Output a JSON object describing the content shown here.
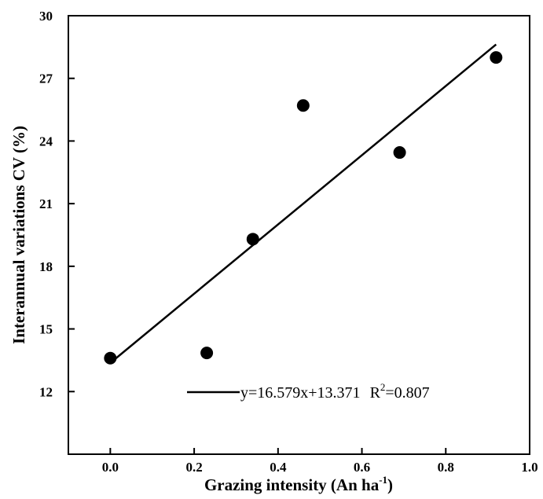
{
  "chart_data": {
    "type": "scatter",
    "xlim": [
      -0.1,
      1.0
    ],
    "ylim": [
      9,
      30
    ],
    "x_ticks": [
      "0.0",
      "0.2",
      "0.4",
      "0.6",
      "0.8",
      "1.0"
    ],
    "x_tick_values": [
      0.0,
      0.2,
      0.4,
      0.6,
      0.8,
      1.0
    ],
    "y_ticks": [
      "12",
      "15",
      "18",
      "21",
      "24",
      "27",
      "30"
    ],
    "y_tick_values": [
      12,
      15,
      18,
      21,
      24,
      27,
      30
    ],
    "xlabel": "Grazing intensity (An ha",
    "xlabel_sup": "-1",
    "xlabel_end": ")",
    "ylabel": "Interannual variations CV (%)",
    "grid": false,
    "series": [
      {
        "points": [
          {
            "x": 0.0,
            "y": 13.6
          },
          {
            "x": 0.23,
            "y": 13.85
          },
          {
            "x": 0.34,
            "y": 19.3
          },
          {
            "x": 0.46,
            "y": 25.7
          },
          {
            "x": 0.69,
            "y": 23.45
          },
          {
            "x": 0.92,
            "y": 28.0
          }
        ]
      }
    ],
    "fit_line": {
      "slope": 16.579,
      "intercept": 13.371,
      "x_range": [
        0.0,
        0.92
      ]
    },
    "legend": {
      "position": "bottom-right",
      "equation": "y=16.579x+13.371",
      "r2_prefix": "R",
      "r2_sup": "2",
      "r2_value": "=0.807"
    }
  },
  "style": {
    "color": "#000000"
  }
}
